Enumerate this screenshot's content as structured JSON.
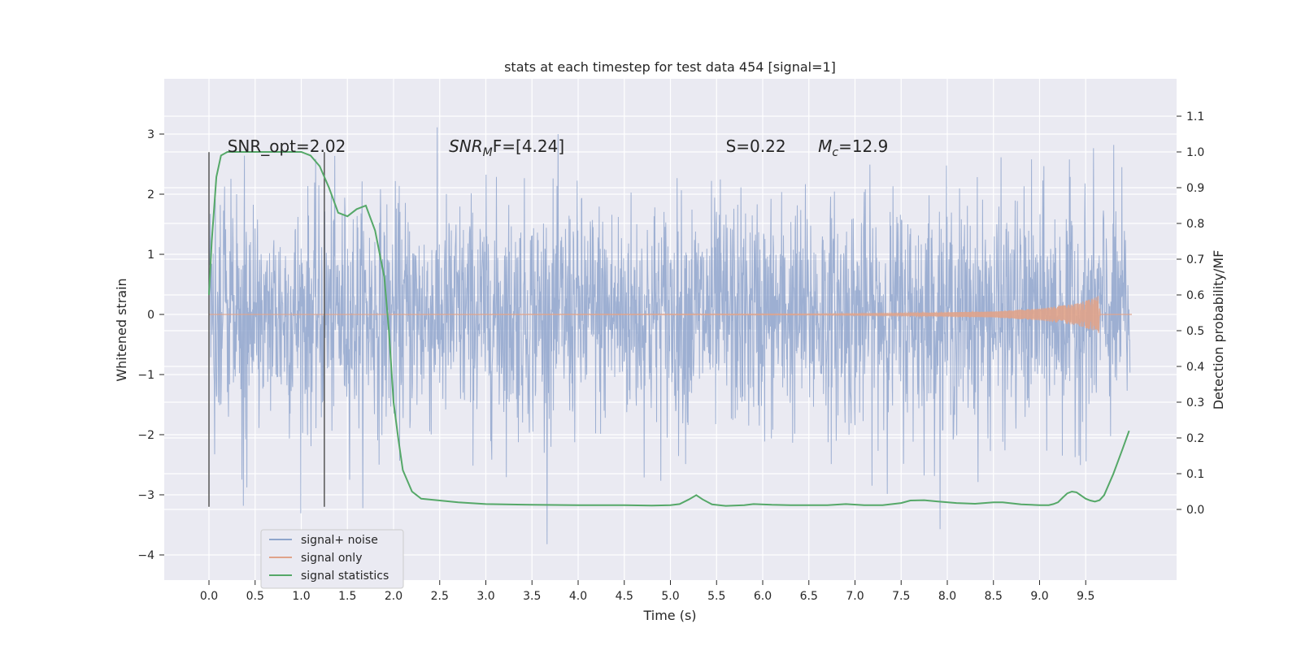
{
  "chart_data": {
    "type": "line",
    "title": "stats at each timestep for test data 454 [signal=1]",
    "xlabel": "Time (s)",
    "ylabel_left": "Whitened strain",
    "ylabel_right": "Detection probability/MF",
    "xlim": [
      -0.5,
      10.5
    ],
    "ylim_left": [
      -4.4,
      3.9
    ],
    "ylim_right": [
      -0.2,
      1.2
    ],
    "x_ticks": [
      "0.0",
      "0.5",
      "1.0",
      "1.5",
      "2.0",
      "2.5",
      "3.0",
      "3.5",
      "4.0",
      "4.5",
      "5.0",
      "5.5",
      "6.0",
      "6.5",
      "7.0",
      "7.5",
      "8.0",
      "8.5",
      "9.0",
      "9.5"
    ],
    "y_ticks_left": [
      "3",
      "2",
      "1",
      "0",
      "−1",
      "−2",
      "−3",
      "−4"
    ],
    "y_ticks_right": [
      "1.1",
      "1.0",
      "0.9",
      "0.8",
      "0.7",
      "0.6",
      "0.5",
      "0.4",
      "0.3",
      "0.2",
      "0.1",
      "0.0"
    ],
    "grid": true,
    "legend_position": "lower-left",
    "colors": {
      "signal_noise": "#8fa5cc",
      "signal_only": "#dd8452",
      "signal_statistics": "#55a868",
      "background": "#eaeaf2",
      "vline": "#555555"
    },
    "series": [
      {
        "name": "signal+ noise",
        "axis": "left",
        "description_range": [
          -4.1,
          3.55
        ],
        "x_range": [
          0.0,
          9.98
        ]
      },
      {
        "name": "signal only",
        "axis": "left",
        "x": [
          0.0,
          6.5,
          7.5,
          8.5,
          9.0,
          9.4,
          9.6,
          9.65,
          9.66,
          10.0
        ],
        "amplitude": [
          0.0,
          0.01,
          0.02,
          0.05,
          0.1,
          0.18,
          0.28,
          0.32,
          0.0,
          0.0
        ]
      },
      {
        "name": "signal statistics",
        "axis": "right",
        "x": [
          0.0,
          0.03,
          0.08,
          0.13,
          0.2,
          0.3,
          0.4,
          0.6,
          0.8,
          1.0,
          1.1,
          1.2,
          1.3,
          1.4,
          1.5,
          1.6,
          1.7,
          1.8,
          1.9,
          1.95,
          2.0,
          2.05,
          2.1,
          2.2,
          2.3,
          2.5,
          2.7,
          3.0,
          3.5,
          4.0,
          4.5,
          4.8,
          5.0,
          5.1,
          5.2,
          5.28,
          5.35,
          5.45,
          5.6,
          5.8,
          5.9,
          6.1,
          6.3,
          6.5,
          6.7,
          6.9,
          7.1,
          7.3,
          7.5,
          7.6,
          7.75,
          7.9,
          8.1,
          8.3,
          8.5,
          8.6,
          8.8,
          9.0,
          9.1,
          9.15,
          9.2,
          9.25,
          9.3,
          9.35,
          9.4,
          9.5,
          9.55,
          9.6,
          9.65,
          9.7,
          9.8,
          9.9,
          9.97
        ],
        "y": [
          0.6,
          0.75,
          0.93,
          0.99,
          1.0,
          1.0,
          1.0,
          1.0,
          1.0,
          1.0,
          0.99,
          0.96,
          0.9,
          0.83,
          0.82,
          0.84,
          0.85,
          0.78,
          0.65,
          0.5,
          0.3,
          0.2,
          0.11,
          0.05,
          0.03,
          0.025,
          0.02,
          0.015,
          0.013,
          0.012,
          0.012,
          0.011,
          0.012,
          0.015,
          0.028,
          0.04,
          0.028,
          0.014,
          0.01,
          0.012,
          0.015,
          0.013,
          0.012,
          0.012,
          0.012,
          0.015,
          0.012,
          0.012,
          0.018,
          0.025,
          0.026,
          0.022,
          0.018,
          0.016,
          0.02,
          0.02,
          0.014,
          0.012,
          0.012,
          0.015,
          0.02,
          0.033,
          0.045,
          0.05,
          0.048,
          0.03,
          0.025,
          0.022,
          0.026,
          0.04,
          0.1,
          0.17,
          0.22
        ]
      }
    ],
    "vlines": [
      0.0,
      1.25
    ],
    "vline_range_left": [
      -3.2,
      2.7
    ],
    "annotations": [
      {
        "text": "SNR_opt=2.02",
        "x": 0.2
      },
      {
        "text_prefix": "SNR",
        "subscript": "M",
        "text_suffix": "F=[4.24]",
        "x": 2.6
      },
      {
        "text": "S=0.22",
        "x": 5.6
      },
      {
        "text_prefix": "M",
        "subscript": "c",
        "text_suffix": "=12.9",
        "x": 6.6
      }
    ],
    "annotation_y_left": 2.7
  }
}
